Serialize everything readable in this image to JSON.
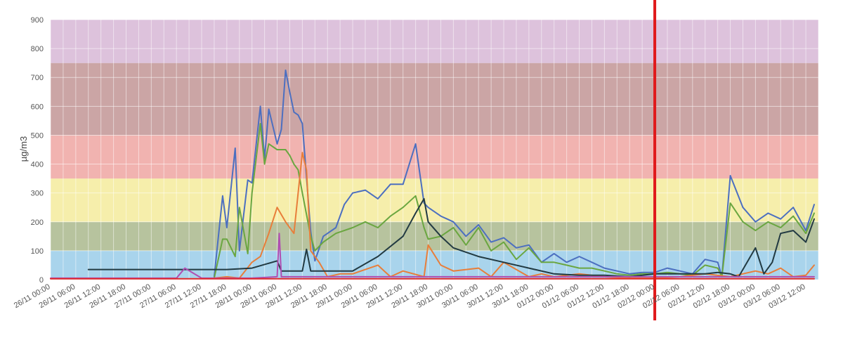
{
  "chart_data": {
    "type": "line",
    "title": "",
    "xlabel": "",
    "ylabel": "µg/m3",
    "ylim": [
      0,
      900
    ],
    "yticks": [
      0,
      100,
      200,
      300,
      400,
      500,
      600,
      700,
      800,
      900
    ],
    "x_ticks": [
      "26/11 00:00",
      "26/11 06:00",
      "26/11 12:00",
      "26/11 18:00",
      "27/11 00:00",
      "27/11 06:00",
      "27/11 12:00",
      "27/11 18:00",
      "28/11 00:00",
      "28/11 06:00",
      "28/11 12:00",
      "28/11 18:00",
      "29/11 00:00",
      "29/11 06:00",
      "29/11 12:00",
      "29/11 18:00",
      "30/11 00:00",
      "30/11 06:00",
      "30/11 12:00",
      "30/11 18:00",
      "01/12 00:00",
      "01/12 06:00",
      "01/12 12:00",
      "01/12 18:00",
      "02/12 00:00",
      "02/12 06:00",
      "02/12 12:00",
      "02/12 18:00",
      "03/12 00:00",
      "03/12 06:00",
      "03/12 12:00"
    ],
    "grid": true,
    "bands": [
      {
        "from": 0,
        "to": 100,
        "color": "#a9d4ec"
      },
      {
        "from": 100,
        "to": 200,
        "color": "#b7c39e"
      },
      {
        "from": 200,
        "to": 350,
        "color": "#f6eeab"
      },
      {
        "from": 350,
        "to": 500,
        "color": "#f1b3b0"
      },
      {
        "from": 500,
        "to": 750,
        "color": "#cba5a5"
      },
      {
        "from": 750,
        "to": 900,
        "color": "#ddc2dc"
      }
    ],
    "vertical_marker": {
      "x": "02/12 00:00",
      "color": "#e0191b"
    },
    "series": [
      {
        "color": "#4c6fc0",
        "x": [
          "27/11 15:00",
          "27/11 17:00",
          "27/11 18:00",
          "27/11 20:00",
          "27/11 21:00",
          "27/11 23:00",
          "28/11 00:00",
          "28/11 02:00",
          "28/11 03:00",
          "28/11 04:00",
          "28/11 06:00",
          "28/11 07:00",
          "28/11 08:00",
          "28/11 09:00",
          "28/11 10:00",
          "28/11 11:00",
          "28/11 12:00",
          "28/11 14:00",
          "28/11 15:00",
          "28/11 17:00",
          "28/11 20:00",
          "28/11 22:00",
          "29/11 00:00",
          "29/11 03:00",
          "29/11 06:00",
          "29/11 09:00",
          "29/11 12:00",
          "29/11 15:00",
          "29/11 17:00",
          "29/11 18:00",
          "29/11 21:00",
          "30/11 00:00",
          "30/11 03:00",
          "30/11 06:00",
          "30/11 09:00",
          "30/11 12:00",
          "30/11 15:00",
          "30/11 18:00",
          "30/11 21:00",
          "01/12 00:00",
          "01/12 03:00",
          "01/12 06:00",
          "01/12 09:00",
          "01/12 12:00",
          "01/12 15:00",
          "01/12 18:00",
          "01/12 21:00",
          "02/12 00:00",
          "02/12 03:00",
          "02/12 06:00",
          "02/12 09:00",
          "02/12 12:00",
          "02/12 15:00",
          "02/12 16:00",
          "02/12 18:00",
          "02/12 21:00",
          "03/12 00:00",
          "03/12 03:00",
          "03/12 06:00",
          "03/12 09:00",
          "03/12 12:00",
          "03/12 14:00"
        ],
        "values": [
          10,
          290,
          180,
          455,
          100,
          345,
          335,
          600,
          420,
          590,
          470,
          520,
          725,
          650,
          580,
          570,
          540,
          165,
          65,
          150,
          180,
          260,
          300,
          310,
          280,
          330,
          330,
          470,
          265,
          250,
          220,
          200,
          150,
          190,
          130,
          145,
          110,
          120,
          60,
          90,
          60,
          80,
          60,
          40,
          30,
          20,
          25,
          25,
          40,
          30,
          20,
          70,
          60,
          10,
          360,
          250,
          200,
          230,
          210,
          250,
          170,
          260
        ]
      },
      {
        "color": "#6aa640",
        "x": [
          "27/11 15:00",
          "27/11 17:00",
          "27/11 18:00",
          "27/11 20:00",
          "27/11 21:00",
          "27/11 23:00",
          "28/11 00:00",
          "28/11 02:00",
          "28/11 03:00",
          "28/11 04:00",
          "28/11 06:00",
          "28/11 07:00",
          "28/11 08:00",
          "28/11 09:00",
          "28/11 10:00",
          "28/11 11:00",
          "28/11 12:00",
          "28/11 14:00",
          "28/11 15:00",
          "28/11 17:00",
          "28/11 20:00",
          "28/11 22:00",
          "29/11 00:00",
          "29/11 03:00",
          "29/11 06:00",
          "29/11 09:00",
          "29/11 12:00",
          "29/11 15:00",
          "29/11 17:00",
          "29/11 18:00",
          "29/11 21:00",
          "30/11 00:00",
          "30/11 03:00",
          "30/11 06:00",
          "30/11 09:00",
          "30/11 12:00",
          "30/11 15:00",
          "30/11 18:00",
          "30/11 21:00",
          "01/12 00:00",
          "01/12 03:00",
          "01/12 06:00",
          "01/12 09:00",
          "01/12 12:00",
          "01/12 15:00",
          "01/12 18:00",
          "01/12 21:00",
          "02/12 00:00",
          "02/12 03:00",
          "02/12 06:00",
          "02/12 09:00",
          "02/12 12:00",
          "02/12 15:00",
          "02/12 16:00",
          "02/12 18:00",
          "02/12 21:00",
          "03/12 00:00",
          "03/12 03:00",
          "03/12 06:00",
          "03/12 09:00",
          "03/12 12:00",
          "03/12 14:00"
        ],
        "values": [
          5,
          140,
          140,
          80,
          250,
          90,
          300,
          540,
          400,
          470,
          450,
          450,
          450,
          430,
          400,
          380,
          300,
          150,
          100,
          130,
          160,
          170,
          180,
          200,
          180,
          220,
          250,
          290,
          180,
          140,
          150,
          180,
          120,
          180,
          100,
          130,
          70,
          110,
          60,
          60,
          50,
          40,
          40,
          30,
          20,
          15,
          20,
          20,
          25,
          20,
          15,
          50,
          40,
          10,
          265,
          200,
          170,
          200,
          180,
          220,
          160,
          230
        ]
      },
      {
        "color": "#e87e3a",
        "x": [
          "27/11 15:00",
          "27/11 18:00",
          "27/11 21:00",
          "28/11 00:00",
          "28/11 02:00",
          "28/11 04:00",
          "28/11 06:00",
          "28/11 08:00",
          "28/11 10:00",
          "28/11 12:00",
          "28/11 13:00",
          "28/11 14:00",
          "28/11 16:00",
          "28/11 18:00",
          "28/11 21:00",
          "29/11 00:00",
          "29/11 06:00",
          "29/11 09:00",
          "29/11 12:00",
          "29/11 17:00",
          "29/11 18:00",
          "29/11 21:00",
          "30/11 00:00",
          "30/11 06:00",
          "30/11 09:00",
          "30/11 12:00",
          "30/11 18:00",
          "30/11 21:00",
          "01/12 00:00",
          "01/12 06:00",
          "01/12 12:00",
          "01/12 18:00",
          "02/12 00:00",
          "02/12 06:00",
          "02/12 12:00",
          "02/12 18:00",
          "03/12 00:00",
          "03/12 03:00",
          "03/12 06:00",
          "03/12 09:00",
          "03/12 12:00",
          "03/12 14:00"
        ],
        "values": [
          5,
          10,
          5,
          60,
          80,
          160,
          250,
          200,
          160,
          440,
          380,
          100,
          60,
          10,
          20,
          20,
          50,
          10,
          30,
          10,
          120,
          50,
          30,
          40,
          10,
          60,
          10,
          20,
          10,
          20,
          10,
          5,
          5,
          10,
          20,
          10,
          30,
          20,
          40,
          10,
          15,
          50
        ]
      },
      {
        "color": "#223a42",
        "x": [
          "26/11 00:00",
          "26/11 06:00",
          "26/11 09:00",
          "26/11 12:00",
          "26/11 18:00",
          "27/11 00:00",
          "27/11 06:00",
          "27/11 12:00",
          "27/11 18:00",
          "28/11 00:00",
          "28/11 06:00",
          "28/11 07:00",
          "28/11 09:00",
          "28/11 12:00",
          "28/11 13:00",
          "28/11 14:00",
          "28/11 18:00",
          "28/11 21:00",
          "29/11 00:00",
          "29/11 06:00",
          "29/11 12:00",
          "29/11 15:00",
          "29/11 17:00",
          "29/11 18:00",
          "29/11 21:00",
          "30/11 00:00",
          "30/11 06:00",
          "30/11 12:00",
          "30/11 18:00",
          "01/12 00:00",
          "01/12 06:00",
          "01/12 12:00",
          "01/12 18:00",
          "02/12 00:00",
          "02/12 06:00",
          "02/12 12:00",
          "02/12 15:00",
          "02/12 18:00",
          "02/12 20:00",
          "03/12 00:00",
          "03/12 02:00",
          "03/12 04:00",
          "03/12 06:00",
          "03/12 09:00",
          "03/12 12:00",
          "03/12 14:00"
        ],
        "values": [
          null,
          null,
          35,
          35,
          35,
          35,
          35,
          35,
          35,
          40,
          65,
          30,
          30,
          30,
          105,
          30,
          30,
          30,
          30,
          80,
          150,
          230,
          280,
          200,
          150,
          110,
          80,
          60,
          40,
          20,
          15,
          15,
          10,
          20,
          20,
          20,
          25,
          20,
          10,
          110,
          20,
          60,
          160,
          170,
          130,
          210
        ]
      },
      {
        "color": "#b04fb2",
        "x": [
          "26/11 00:00",
          "26/11 18:00",
          "27/11 06:00",
          "27/11 08:00",
          "27/11 12:00",
          "28/11 00:00",
          "28/11 06:00",
          "28/11 06:30",
          "28/11 07:00",
          "28/11 12:00",
          "29/11 00:00",
          "30/11 00:00",
          "01/12 00:00",
          "02/12 00:00",
          "03/12 00:00",
          "03/12 14:00"
        ],
        "values": [
          5,
          5,
          5,
          40,
          5,
          5,
          10,
          160,
          10,
          10,
          10,
          10,
          10,
          10,
          10,
          10
        ]
      },
      {
        "color": "#e02a2a",
        "x": [
          "26/11 00:00",
          "27/11 00:00",
          "28/11 00:00",
          "29/11 00:00",
          "30/11 00:00",
          "01/12 00:00",
          "02/12 00:00",
          "03/12 00:00",
          "03/12 14:00"
        ],
        "values": [
          3,
          3,
          3,
          3,
          3,
          3,
          3,
          3,
          3
        ]
      }
    ]
  }
}
